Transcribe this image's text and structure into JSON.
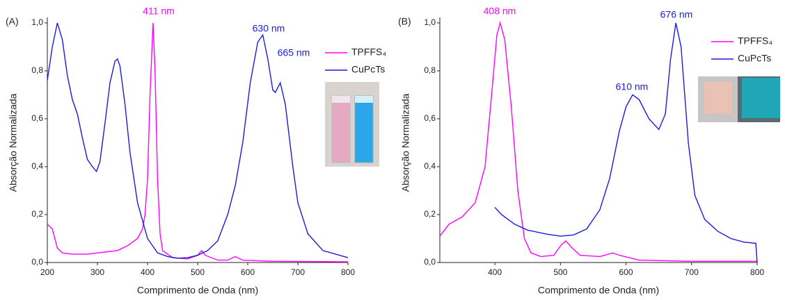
{
  "chart_data": [
    {
      "type": "line",
      "panel_label": "(A)",
      "x_label": "Comprimento de Onda (nm)",
      "y_label": "Absorção Normalizada",
      "xlim": [
        200,
        800
      ],
      "xticks": [
        200,
        300,
        400,
        500,
        600,
        700,
        800
      ],
      "ylim": [
        0,
        1
      ],
      "yticks": [
        {
          "value": 0,
          "label": "0,0"
        },
        {
          "value": 0.2,
          "label": "0,2"
        },
        {
          "value": 0.4,
          "label": "0,4"
        },
        {
          "value": 0.6,
          "label": "0,6"
        },
        {
          "value": 0.8,
          "label": "0,8"
        },
        {
          "value": 1,
          "label": "1,0"
        }
      ],
      "legend": "upper right",
      "annotations": [
        {
          "text": "411 nm",
          "color": "#ff00ff"
        },
        {
          "text": "630 nm",
          "color": "#1a1adb"
        },
        {
          "text": "665 nm",
          "color": "#1a1adb"
        }
      ],
      "series": [
        {
          "name": "TPFFS₄",
          "color": "#ff00ff",
          "x": [
            200,
            210,
            215,
            220,
            230,
            250,
            280,
            300,
            320,
            340,
            360,
            380,
            390,
            395,
            400,
            405,
            411,
            415,
            420,
            425,
            430,
            450,
            480,
            500,
            508,
            515,
            540,
            560,
            575,
            590,
            650,
            800
          ],
          "values": [
            0.16,
            0.14,
            0.1,
            0.06,
            0.04,
            0.035,
            0.035,
            0.04,
            0.045,
            0.05,
            0.07,
            0.1,
            0.14,
            0.2,
            0.35,
            0.7,
            1.0,
            0.8,
            0.35,
            0.12,
            0.05,
            0.02,
            0.015,
            0.03,
            0.05,
            0.03,
            0.01,
            0.01,
            0.025,
            0.01,
            0.005,
            0.003
          ]
        },
        {
          "name": "CuPcTs",
          "color": "#1a1adb",
          "x": [
            200,
            210,
            220,
            230,
            240,
            250,
            260,
            270,
            280,
            290,
            298,
            305,
            315,
            325,
            335,
            340,
            345,
            355,
            365,
            380,
            400,
            420,
            440,
            460,
            480,
            500,
            520,
            540,
            560,
            575,
            590,
            605,
            620,
            630,
            640,
            650,
            655,
            665,
            675,
            690,
            700,
            720,
            750,
            800
          ],
          "values": [
            0.76,
            0.9,
            1.0,
            0.93,
            0.78,
            0.68,
            0.62,
            0.52,
            0.43,
            0.4,
            0.38,
            0.42,
            0.58,
            0.75,
            0.84,
            0.85,
            0.82,
            0.66,
            0.46,
            0.25,
            0.1,
            0.04,
            0.025,
            0.018,
            0.02,
            0.03,
            0.05,
            0.09,
            0.2,
            0.32,
            0.5,
            0.75,
            0.92,
            0.95,
            0.85,
            0.72,
            0.71,
            0.75,
            0.66,
            0.4,
            0.25,
            0.12,
            0.05,
            0.02
          ]
        }
      ]
    },
    {
      "type": "line",
      "panel_label": "(B)",
      "x_label": "Comprimento de Onda (nm)",
      "y_label": "Absorção Normalizada",
      "xlim": [
        316,
        800
      ],
      "xticks": [
        400,
        500,
        600,
        700,
        800
      ],
      "ylim": [
        0,
        1
      ],
      "yticks": [
        {
          "value": 0,
          "label": "0,0"
        },
        {
          "value": 0.2,
          "label": "0,2"
        },
        {
          "value": 0.4,
          "label": "0,4"
        },
        {
          "value": 0.6,
          "label": "0,6"
        },
        {
          "value": 0.8,
          "label": "0,8"
        },
        {
          "value": 1,
          "label": "1,0"
        }
      ],
      "legend": "upper right",
      "annotations": [
        {
          "text": "408 nm",
          "color": "#ff00ff"
        },
        {
          "text": "610 nm",
          "color": "#1a1adb"
        },
        {
          "text": "676 nm",
          "color": "#1a1adb"
        }
      ],
      "series": [
        {
          "name": "TPFFS₄",
          "color": "#ff00ff",
          "x": [
            316,
            330,
            350,
            370,
            385,
            395,
            403,
            408,
            415,
            425,
            435,
            445,
            455,
            470,
            490,
            500,
            508,
            518,
            530,
            560,
            580,
            590,
            620,
            700,
            800
          ],
          "values": [
            0.11,
            0.16,
            0.19,
            0.25,
            0.4,
            0.7,
            0.95,
            1.0,
            0.93,
            0.65,
            0.3,
            0.1,
            0.04,
            0.025,
            0.03,
            0.07,
            0.09,
            0.06,
            0.03,
            0.025,
            0.04,
            0.03,
            0.01,
            0.005,
            0.005
          ]
        },
        {
          "name": "CuPcTs",
          "color": "#1a1adb",
          "x": [
            400,
            410,
            430,
            450,
            480,
            500,
            520,
            540,
            560,
            575,
            590,
            600,
            610,
            620,
            635,
            650,
            660,
            668,
            676,
            684,
            695,
            705,
            720,
            740,
            760,
            780,
            798,
            800
          ],
          "values": [
            0.23,
            0.2,
            0.16,
            0.135,
            0.118,
            0.11,
            0.115,
            0.14,
            0.22,
            0.35,
            0.55,
            0.65,
            0.7,
            0.68,
            0.6,
            0.555,
            0.62,
            0.85,
            1.0,
            0.9,
            0.5,
            0.28,
            0.18,
            0.13,
            0.1,
            0.085,
            0.08,
            0
          ]
        }
      ]
    }
  ]
}
